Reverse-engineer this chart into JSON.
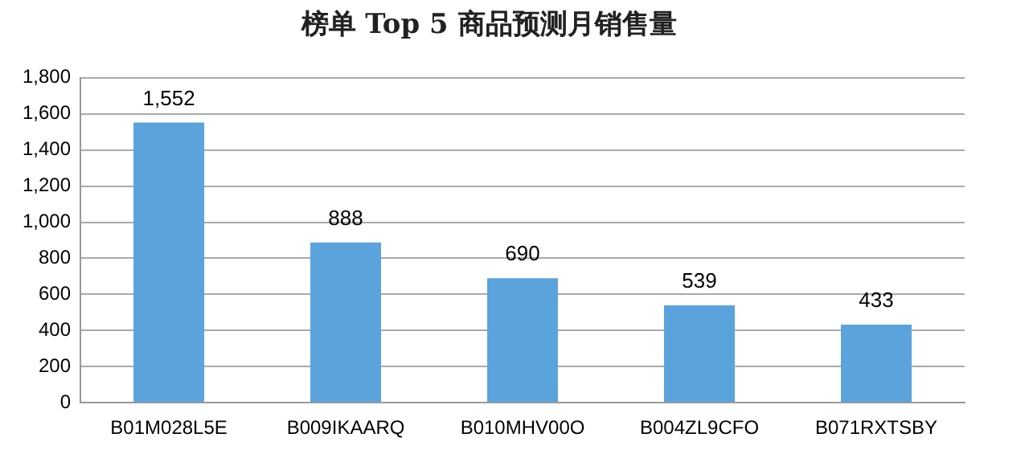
{
  "chart_data": {
    "type": "bar",
    "title": "榜单 Top 5 商品预测月销售量",
    "categories": [
      "B01M028L5E",
      "B009IKAARQ",
      "B010MHV00O",
      "B004ZL9CFO",
      "B071RXTSBY"
    ],
    "values": [
      1552,
      888,
      690,
      539,
      433
    ],
    "color": "#5ba3dc",
    "ylim": [
      0,
      1800
    ],
    "yticks": [
      0,
      200,
      400,
      600,
      800,
      {
        "value": 1000,
        "label": "1,000"
      },
      {
        "value": 1200,
        "label": "1,200"
      },
      {
        "value": 1400,
        "label": "1,400"
      },
      {
        "value": 1600,
        "label": "1,600"
      },
      {
        "value": 1800,
        "label": "1,800"
      }
    ],
    "value_labels": [
      "1,552",
      "888",
      "690",
      "539",
      "433"
    ],
    "grid": "y",
    "legend": false
  }
}
